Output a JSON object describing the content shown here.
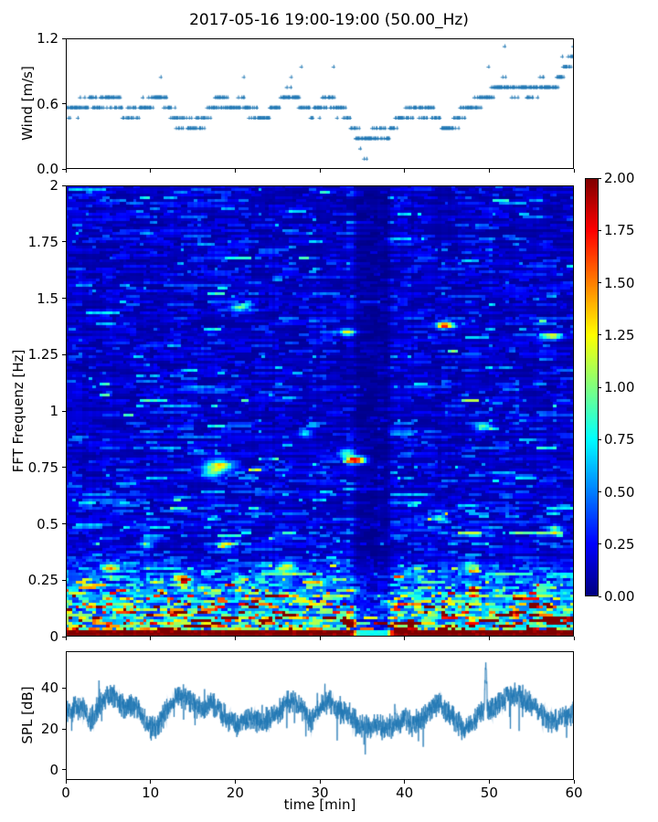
{
  "title": "2017-05-16 19:00-19:00 (50.00_Hz)",
  "colors": {
    "series_blue": "#1f77b4",
    "frame": "#000000",
    "background": "#ffffff",
    "colormap_low": "#00007f",
    "colormap_high": "#7f0000"
  },
  "chart_data": [
    {
      "type": "scatter",
      "name": "wind",
      "ylabel": "Wind [m/s]",
      "marker": "+",
      "color": "#1f77b4",
      "xlim": [
        0,
        60
      ],
      "ylim": [
        0,
        1.2
      ],
      "yticks": [
        0.0,
        0.6,
        1.2
      ],
      "ytick_labels": [
        "0.0",
        "0.6",
        "1.2"
      ],
      "xticks": [
        0,
        10,
        20,
        30,
        40,
        50,
        60
      ],
      "quantization_step_ms": 0.094,
      "sample_interval_min": 0.0667,
      "seed": 77,
      "trend": [
        [
          0,
          0.55
        ],
        [
          1,
          0.56
        ],
        [
          2,
          0.58
        ],
        [
          3,
          0.62
        ],
        [
          4,
          0.6
        ],
        [
          5,
          0.64
        ],
        [
          6,
          0.6
        ],
        [
          7,
          0.52
        ],
        [
          8,
          0.5
        ],
        [
          9,
          0.56
        ],
        [
          10,
          0.62
        ],
        [
          11,
          0.66
        ],
        [
          12,
          0.6
        ],
        [
          13,
          0.46
        ],
        [
          14,
          0.42
        ],
        [
          15,
          0.38
        ],
        [
          16,
          0.44
        ],
        [
          17,
          0.56
        ],
        [
          18,
          0.62
        ],
        [
          19,
          0.6
        ],
        [
          20,
          0.56
        ],
        [
          21,
          0.6
        ],
        [
          22,
          0.52
        ],
        [
          23,
          0.48
        ],
        [
          24,
          0.52
        ],
        [
          25,
          0.58
        ],
        [
          26,
          0.66
        ],
        [
          27,
          0.64
        ],
        [
          28,
          0.58
        ],
        [
          29,
          0.5
        ],
        [
          30,
          0.56
        ],
        [
          31,
          0.64
        ],
        [
          32,
          0.56
        ],
        [
          33,
          0.48
        ],
        [
          34,
          0.38
        ],
        [
          35,
          0.26
        ],
        [
          36,
          0.3
        ],
        [
          37,
          0.34
        ],
        [
          38,
          0.3
        ],
        [
          39,
          0.44
        ],
        [
          40,
          0.5
        ],
        [
          41,
          0.54
        ],
        [
          42,
          0.5
        ],
        [
          43,
          0.54
        ],
        [
          44,
          0.44
        ],
        [
          45,
          0.36
        ],
        [
          46,
          0.42
        ],
        [
          47,
          0.54
        ],
        [
          48,
          0.58
        ],
        [
          49,
          0.64
        ],
        [
          50,
          0.7
        ],
        [
          51,
          0.74
        ],
        [
          52,
          0.78
        ],
        [
          53,
          0.7
        ],
        [
          54,
          0.76
        ],
        [
          55,
          0.7
        ],
        [
          56,
          0.78
        ],
        [
          57,
          0.74
        ],
        [
          58,
          0.82
        ],
        [
          59,
          0.92
        ],
        [
          60,
          1.02
        ]
      ],
      "outliers": [
        [
          11.2,
          0.846
        ],
        [
          21.0,
          0.846
        ],
        [
          26.6,
          0.846
        ],
        [
          27.8,
          0.94
        ],
        [
          31.6,
          0.94
        ],
        [
          35.2,
          0.094
        ],
        [
          35.5,
          0.094
        ],
        [
          49.9,
          0.94
        ],
        [
          51.8,
          1.128
        ],
        [
          58.6,
          1.034
        ],
        [
          59.9,
          1.128
        ]
      ]
    },
    {
      "type": "heatmap",
      "name": "spectrogram",
      "ylabel": "FFT Frequenz [Hz]",
      "xlim": [
        0,
        60
      ],
      "ylim": [
        0,
        2
      ],
      "yticks": [
        0,
        0.25,
        0.5,
        0.75,
        1,
        1.25,
        1.5,
        1.75,
        2
      ],
      "ytick_labels": [
        "0",
        "0.25",
        "0.5",
        "0.75",
        "1",
        "1.25",
        "1.5",
        "1.75",
        "2"
      ],
      "xticks": [
        0,
        10,
        20,
        30,
        40,
        50,
        60
      ],
      "colormap": "jet",
      "clim": [
        0,
        2
      ],
      "colorbar_ticks": [
        0.0,
        0.25,
        0.5,
        0.75,
        1.0,
        1.25,
        1.5,
        1.75,
        2.0
      ],
      "colorbar_tick_labels": [
        "0.00",
        "0.25",
        "0.50",
        "0.75",
        "1.00",
        "1.25",
        "1.50",
        "1.75",
        "2.00"
      ],
      "grid": {
        "nx": 150,
        "ny": 164
      },
      "seed": 20170516,
      "base_level": 0.17,
      "cyan_band": {
        "center_hz": 0.42,
        "sigma_hz": 0.22,
        "gain": 0.35
      },
      "low_freq_ramp": {
        "below_hz": 0.34,
        "max_add": 1.15
      },
      "bottom_rows_value": 2.05,
      "quiet_band": {
        "center_min": 36.3,
        "flat_halfwidth_min": 1.6,
        "edge_min": 1.0,
        "min_factor": 0.38
      },
      "hotspots": [
        [
          18.2,
          0.755,
          1.15,
          1.1,
          0.018
        ],
        [
          17.3,
          0.72,
          0.7,
          0.8,
          0.015
        ],
        [
          34.3,
          0.78,
          1.9,
          0.8,
          0.011
        ],
        [
          33.2,
          0.81,
          0.8,
          0.7,
          0.012
        ],
        [
          44.8,
          1.38,
          1.5,
          0.7,
          0.011
        ],
        [
          20.6,
          1.46,
          0.95,
          0.8,
          0.011
        ],
        [
          57.4,
          1.33,
          1.05,
          0.9,
          0.011
        ],
        [
          33.2,
          1.35,
          0.85,
          0.7,
          0.011
        ],
        [
          49.3,
          0.93,
          0.85,
          0.7,
          0.011
        ],
        [
          28.4,
          0.9,
          0.7,
          0.5,
          0.011
        ],
        [
          57.8,
          0.47,
          0.8,
          0.6,
          0.012
        ],
        [
          19.0,
          0.4,
          0.85,
          0.6,
          0.014
        ],
        [
          9.6,
          0.4,
          0.7,
          0.5,
          0.014
        ],
        [
          44.2,
          0.52,
          0.75,
          0.6,
          0.012
        ],
        [
          5.4,
          0.3,
          0.9,
          0.7,
          0.016
        ],
        [
          26.2,
          0.3,
          0.9,
          0.7,
          0.016
        ],
        [
          47.8,
          0.3,
          0.8,
          0.6,
          0.016
        ],
        [
          14.0,
          0.24,
          0.9,
          0.7,
          0.016
        ]
      ]
    },
    {
      "type": "line",
      "name": "spl",
      "ylabel": "SPL [dB]",
      "xlabel": "time [min]",
      "color": "#1f77b4",
      "xlim": [
        0,
        60
      ],
      "ylim": [
        -5,
        58
      ],
      "yticks": [
        0,
        20,
        40
      ],
      "ytick_labels": [
        "0",
        "20",
        "40"
      ],
      "xticks": [
        0,
        10,
        20,
        30,
        40,
        50,
        60
      ],
      "xtick_labels": [
        "0",
        "10",
        "20",
        "30",
        "40",
        "50",
        "60"
      ],
      "seed": 1234,
      "noise_db": 7,
      "trend": [
        [
          0,
          27
        ],
        [
          1,
          30
        ],
        [
          2,
          31
        ],
        [
          3,
          25
        ],
        [
          4,
          31
        ],
        [
          5,
          37
        ],
        [
          6,
          35
        ],
        [
          7,
          30
        ],
        [
          8,
          32
        ],
        [
          9,
          26
        ],
        [
          10,
          20
        ],
        [
          11,
          22
        ],
        [
          12,
          30
        ],
        [
          13,
          35
        ],
        [
          14,
          36
        ],
        [
          15,
          32
        ],
        [
          16,
          30
        ],
        [
          17,
          33
        ],
        [
          18,
          30
        ],
        [
          19,
          25
        ],
        [
          20,
          22
        ],
        [
          21,
          24
        ],
        [
          22,
          25
        ],
        [
          23,
          23
        ],
        [
          24,
          25
        ],
        [
          25,
          28
        ],
        [
          26,
          32
        ],
        [
          27,
          34
        ],
        [
          28,
          28
        ],
        [
          29,
          24
        ],
        [
          30,
          30
        ],
        [
          31,
          34
        ],
        [
          32,
          30
        ],
        [
          33,
          28
        ],
        [
          34,
          25
        ],
        [
          35,
          22
        ],
        [
          36,
          20
        ],
        [
          37,
          22
        ],
        [
          38,
          20
        ],
        [
          39,
          22
        ],
        [
          40,
          25
        ],
        [
          41,
          22
        ],
        [
          42,
          25
        ],
        [
          43,
          30
        ],
        [
          44,
          33
        ],
        [
          45,
          29
        ],
        [
          46,
          24
        ],
        [
          47,
          20
        ],
        [
          48,
          23
        ],
        [
          49,
          28
        ],
        [
          50,
          30
        ],
        [
          51,
          32
        ],
        [
          52,
          35
        ],
        [
          53,
          37
        ],
        [
          54,
          35
        ],
        [
          55,
          32
        ],
        [
          56,
          28
        ],
        [
          57,
          25
        ],
        [
          58,
          24
        ],
        [
          59,
          26
        ],
        [
          60,
          28
        ]
      ],
      "spikes": [
        [
          49.6,
          55
        ]
      ]
    }
  ]
}
